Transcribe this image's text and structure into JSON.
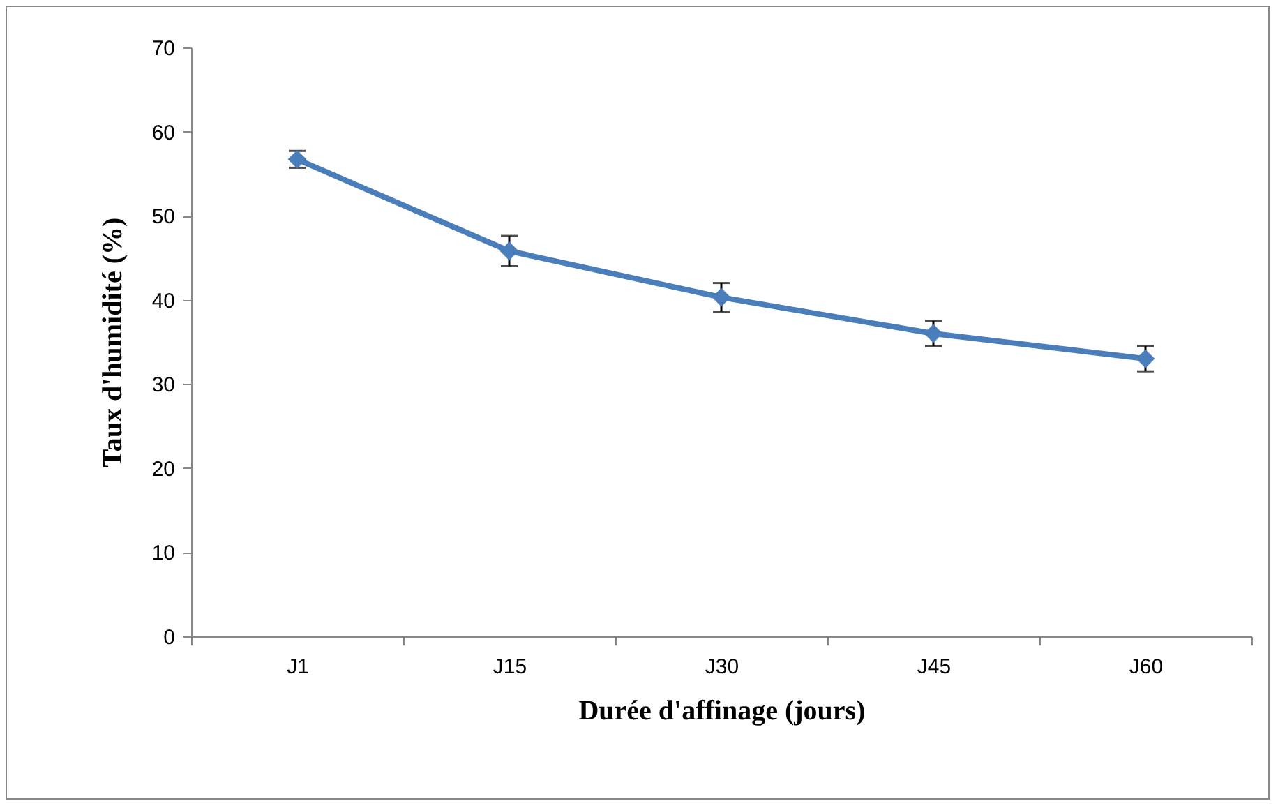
{
  "chart_data": {
    "type": "line",
    "xlabel": "Durée d'affinage (jours)",
    "ylabel": "Taux d'humidité (%)",
    "categories": [
      "J1",
      "J15",
      "J30",
      "J45",
      "J60"
    ],
    "series": [
      {
        "color": "#4a7ebb",
        "values": [
          56.7,
          45.8,
          40.3,
          36.0,
          33.0
        ],
        "errors": [
          1.0,
          1.8,
          1.7,
          1.5,
          1.5
        ]
      }
    ],
    "ylim": [
      0,
      70
    ],
    "yticks": [
      0,
      10,
      20,
      30,
      40,
      50,
      60,
      70
    ],
    "grid": false,
    "marker": "diamond",
    "line_style": "solid"
  }
}
